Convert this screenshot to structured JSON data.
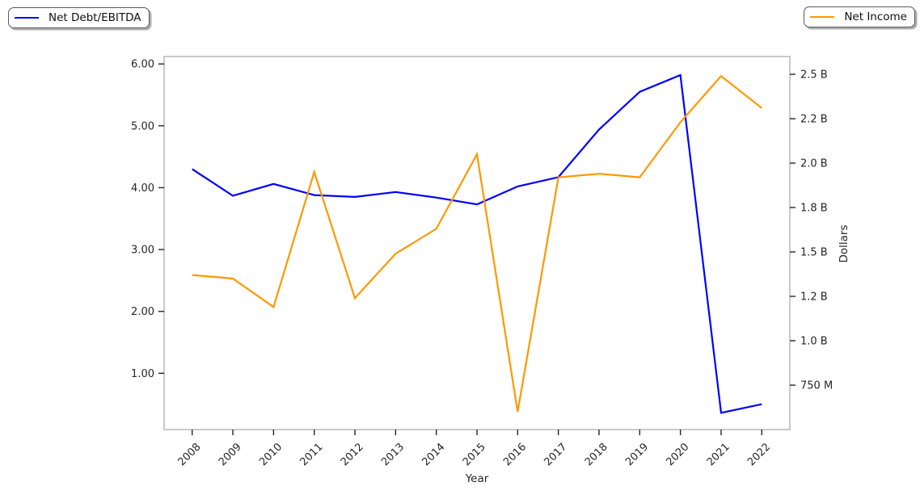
{
  "legends": {
    "left": {
      "label": "Net Debt/EBITDA",
      "color": "#0000ff"
    },
    "right": {
      "label": "Net Income",
      "color": "#ff9800"
    }
  },
  "chart_data": {
    "type": "line",
    "title": "",
    "xlabel": "Year",
    "right_ylabel": "Dollars",
    "grid": false,
    "categories": [
      "2008",
      "2009",
      "2010",
      "2011",
      "2012",
      "2013",
      "2014",
      "2015",
      "2016",
      "2017",
      "2018",
      "2019",
      "2020",
      "2021",
      "2022"
    ],
    "series": [
      {
        "name": "Net Debt/EBITDA",
        "axis": "left",
        "color": "#0000ff",
        "values": [
          4.3,
          3.87,
          4.06,
          3.88,
          3.85,
          3.93,
          3.84,
          3.73,
          4.02,
          4.17,
          4.94,
          5.55,
          5.82,
          0.36,
          0.5
        ]
      },
      {
        "name": "Net Income",
        "axis": "right",
        "color": "#ff9800",
        "unit": "billions of dollars",
        "values": [
          1.37,
          1.35,
          1.19,
          1.95,
          1.24,
          1.49,
          1.63,
          2.05,
          0.6,
          1.92,
          1.94,
          1.92,
          2.23,
          2.49,
          2.31
        ]
      }
    ],
    "left_axis": {
      "lim": [
        0.09,
        6.12
      ],
      "ticks": [
        {
          "value": 6.0,
          "label": "6.00"
        },
        {
          "value": 5.0,
          "label": "5.00"
        },
        {
          "value": 4.0,
          "label": "4.00"
        },
        {
          "value": 3.0,
          "label": "3.00"
        },
        {
          "value": 2.0,
          "label": "2.00"
        },
        {
          "value": 1.0,
          "label": "1.00"
        }
      ]
    },
    "right_axis": {
      "lim": [
        0.5,
        2.6
      ],
      "ticks": [
        {
          "value": 2.5,
          "label": "2.5 B"
        },
        {
          "value": 2.25,
          "label": "2.2 B"
        },
        {
          "value": 2.0,
          "label": "2.0 B"
        },
        {
          "value": 1.75,
          "label": "1.8 B"
        },
        {
          "value": 1.5,
          "label": "1.5 B"
        },
        {
          "value": 1.25,
          "label": "1.2 B"
        },
        {
          "value": 1.0,
          "label": "1.0 B"
        },
        {
          "value": 0.75,
          "label": "750 M"
        }
      ]
    },
    "legend_position": [
      "figure upper-left",
      "figure upper-right"
    ]
  }
}
